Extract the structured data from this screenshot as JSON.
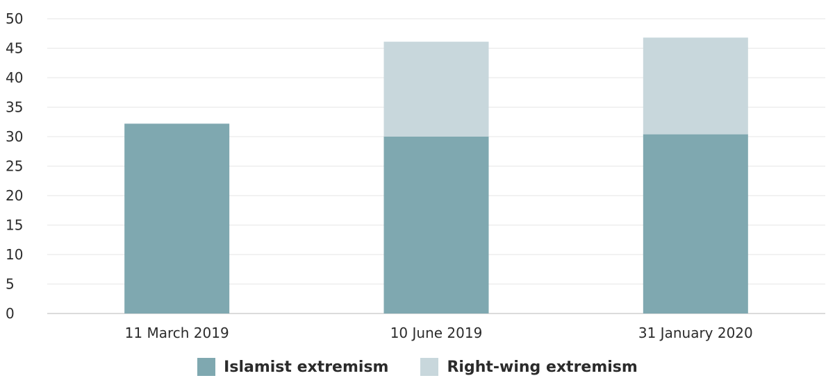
{
  "chart_data": {
    "type": "bar",
    "stacked": true,
    "categories": [
      "11 March 2019",
      "10 June 2019",
      "31 January 2020"
    ],
    "series": [
      {
        "name": "Islamist extremism",
        "values": [
          32.2,
          30.0,
          30.4
        ],
        "color": "#7fa8b0"
      },
      {
        "name": "Right-wing extremism",
        "values": [
          0,
          16.1,
          16.4
        ],
        "color": "#c8d7dc"
      }
    ],
    "y_ticks": [
      "0",
      "5",
      "10",
      "15",
      "20",
      "25",
      "30",
      "35",
      "40",
      "45",
      "50"
    ],
    "ylim": [
      0,
      50
    ],
    "grid": true,
    "legend_position": "bottom-center",
    "title": "",
    "xlabel": "",
    "ylabel": ""
  }
}
